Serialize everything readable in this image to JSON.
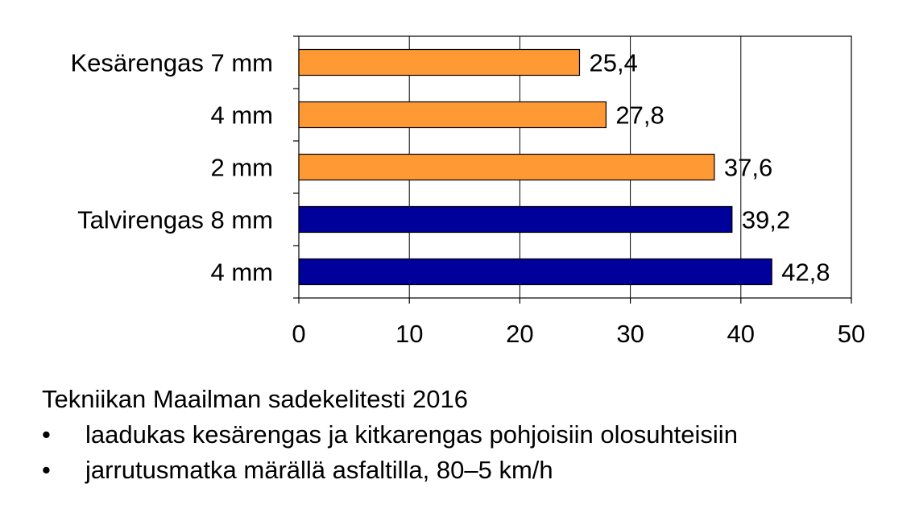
{
  "chart_data": {
    "type": "bar",
    "orientation": "horizontal",
    "categories": [
      "Kesärengas 7 mm",
      "4 mm",
      "2 mm",
      "Talvirengas 8 mm",
      "4 mm"
    ],
    "values": [
      25.4,
      27.8,
      37.6,
      39.2,
      42.8
    ],
    "data_labels": [
      "25,4",
      "27,8",
      "37,6",
      "39,2",
      "42,8"
    ],
    "bar_colors": [
      "#ff9933",
      "#ff9933",
      "#ff9933",
      "#00009a",
      "#00009a"
    ],
    "xlim": [
      0,
      50
    ],
    "x_ticks": [
      0,
      10,
      20,
      30,
      40,
      50
    ],
    "grid": "vertical",
    "legend": "none"
  },
  "caption": {
    "title": "Tekniikan Maailman sadekelitesti 2016",
    "bullet_symbol": "•",
    "bullets": [
      "laadukas kesärengas ja kitkarengas pohjoisiin olosuhteisiin",
      "jarrutusmatka märällä asfaltilla, 80–5 km/h"
    ]
  }
}
